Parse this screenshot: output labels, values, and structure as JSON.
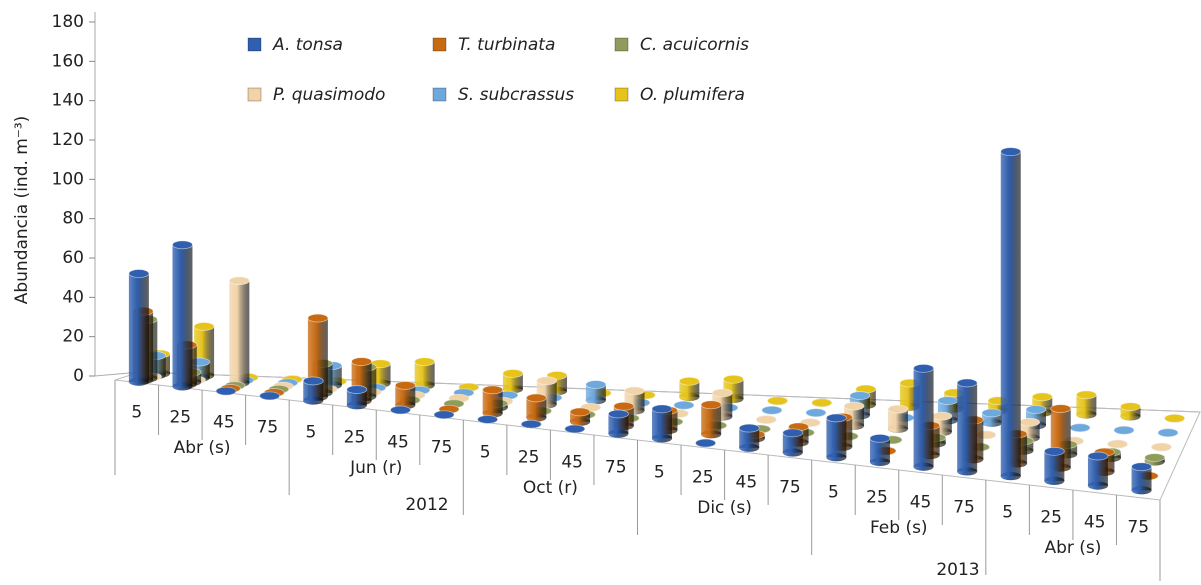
{
  "chart_data": {
    "type": "bar3d",
    "y_label": "Abundancia (ind. m⁻³)",
    "ylim": [
      0,
      180
    ],
    "yticks": [
      0,
      20,
      40,
      60,
      80,
      100,
      120,
      140,
      160,
      180
    ],
    "categories": [
      "5",
      "25",
      "45",
      "75",
      "5",
      "25",
      "45",
      "75",
      "5",
      "25",
      "45",
      "75",
      "5",
      "25",
      "45",
      "75",
      "5",
      "25",
      "45",
      "75",
      "5",
      "25",
      "45",
      "75"
    ],
    "groups": [
      "Abr  (s)",
      "Jun  (r)",
      "Oct (r)",
      "Dic  (s)",
      "Feb  (s)",
      "Abr  (s)"
    ],
    "years": [
      "2012",
      "2013"
    ],
    "series": [
      {
        "name": "A. tonsa",
        "color": "#2f5fae",
        "values": [
          55,
          72,
          0,
          0,
          10,
          8,
          0,
          0,
          0,
          0,
          0,
          10,
          15,
          0,
          10,
          10,
          20,
          12,
          50,
          45,
          165,
          15,
          15,
          12
        ]
      },
      {
        "name": "T. turbinata",
        "color": "#c86a12",
        "values": [
          35,
          20,
          0,
          0,
          40,
          20,
          10,
          0,
          12,
          10,
          5,
          10,
          10,
          15,
          2,
          8,
          15,
          0,
          15,
          20,
          15,
          30,
          10,
          0
        ]
      },
      {
        "name": "C. acuicornis",
        "color": "#909c5c",
        "values": [
          30,
          5,
          0,
          0,
          15,
          15,
          0,
          0,
          2,
          0,
          0,
          0,
          0,
          0,
          0,
          0,
          0,
          0,
          3,
          0,
          5,
          5,
          3,
          2
        ]
      },
      {
        "name": "P. quasimodo",
        "color": "#f1d3a8",
        "values": [
          0,
          0,
          52,
          0,
          0,
          0,
          0,
          0,
          0,
          12,
          0,
          10,
          0,
          12,
          0,
          0,
          10,
          10,
          8,
          0,
          8,
          0,
          0,
          0
        ]
      },
      {
        "name": "S. subcrassus",
        "color": "#6ea9de",
        "values": [
          10,
          8,
          0,
          0,
          10,
          0,
          0,
          0,
          0,
          0,
          8,
          0,
          0,
          0,
          0,
          0,
          10,
          0,
          10,
          5,
          8,
          0,
          0,
          0
        ]
      },
      {
        "name": "O. plumifera",
        "color": "#e6c41c",
        "values": [
          10,
          25,
          0,
          0,
          0,
          10,
          12,
          0,
          8,
          8,
          0,
          0,
          8,
          10,
          0,
          0,
          8,
          12,
          8,
          5,
          8,
          10,
          5,
          0
        ]
      }
    ]
  }
}
